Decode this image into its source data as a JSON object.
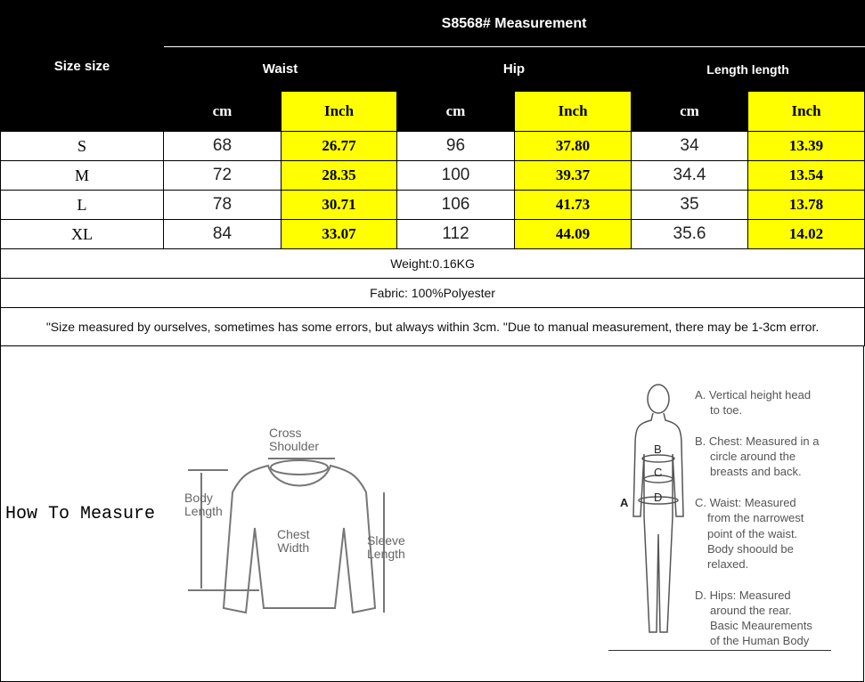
{
  "table": {
    "title": "S8568# Measurement",
    "size_header": "Size size",
    "groups": [
      "Waist",
      "Hip",
      "Length length"
    ],
    "units": [
      "cm",
      "Inch",
      "cm",
      "Inch",
      "cm",
      "Inch"
    ],
    "rows": [
      {
        "size": "S",
        "values": [
          "68",
          "26.77",
          "96",
          "37.80",
          "34",
          "13.39"
        ]
      },
      {
        "size": "M",
        "values": [
          "72",
          "28.35",
          "100",
          "39.37",
          "34.4",
          "13.54"
        ]
      },
      {
        "size": "L",
        "values": [
          "78",
          "30.71",
          "106",
          "41.73",
          "35",
          "13.78"
        ]
      },
      {
        "size": "XL",
        "values": [
          "84",
          "33.07",
          "112",
          "44.09",
          "35.6",
          "14.02"
        ]
      }
    ],
    "weight": "Weight:0.16KG",
    "fabric": "Fabric: 100%Polyester",
    "note": "\"Size measured by ourselves, sometimes has some errors, but always within 3cm. \"Due to manual measurement, there may be 1-3cm error."
  },
  "colors": {
    "header_bg": "#000000",
    "highlight": "#ffff00"
  },
  "how_to_measure": {
    "title": "How To Measure",
    "garment_labels": {
      "cross_shoulder": [
        "Cross",
        "Shoulder"
      ],
      "body_length": [
        "Body",
        "Length"
      ],
      "chest_width": [
        "Chest",
        "Width"
      ],
      "sleeve_length": [
        "Sleeve",
        "Length"
      ]
    },
    "body_markers": [
      "A",
      "B",
      "C",
      "D"
    ],
    "body_text": [
      "A. Vertical height head",
      "to toe.",
      "B. Chest: Measured in a",
      "circle around the",
      "breasts and back.",
      "C. Waist: Measured",
      "from the narrowest",
      "point of the waist.",
      "Body shoould be",
      "relaxed.",
      "D. Hips: Measured",
      "around the rear.",
      "Basic Meaurements",
      "of the Human Body"
    ]
  }
}
